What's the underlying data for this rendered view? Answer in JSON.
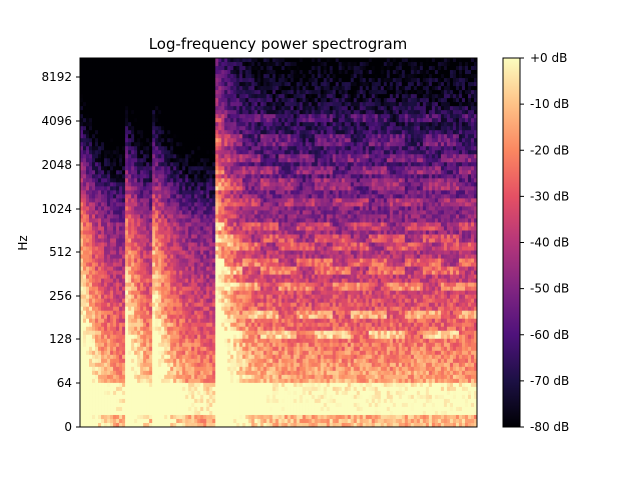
{
  "chart_data": {
    "type": "heatmap",
    "title": "Log-frequency power spectrogram",
    "xlabel": "",
    "ylabel": "Hz",
    "y_scale": "log",
    "y_ticks": [
      "0",
      "64",
      "128",
      "256",
      "512",
      "1024",
      "2048",
      "4096",
      "8192"
    ],
    "colormap": "magma",
    "colorbar": {
      "ticks": [
        "+0 dB",
        "-10 dB",
        "-20 dB",
        "-30 dB",
        "-40 dB",
        "-50 dB",
        "-60 dB",
        "-70 dB",
        "-80 dB"
      ],
      "range_db": [
        -80,
        0
      ]
    },
    "description_values": {
      "onset_frames_fraction": [
        0.0,
        0.11,
        0.18,
        0.34
      ],
      "dense_harmonic_section_start_fraction": 0.34,
      "harmonic_lines_hz": [
        140,
        190,
        300,
        380,
        440,
        560,
        620,
        760,
        1100,
        1500,
        1900,
        2300,
        3000,
        4200
      ]
    }
  }
}
